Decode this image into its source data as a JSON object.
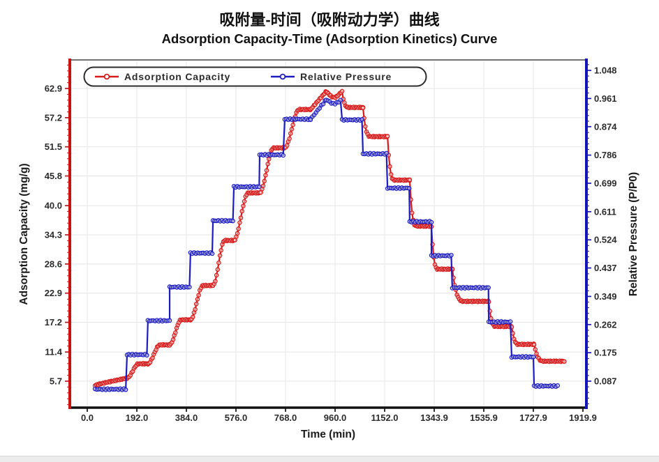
{
  "titles": {
    "zh": "吸附量-时间（吸附动力学）曲线",
    "en": "Adsorption Capacity-Time (Adsorption Kinetics) Curve"
  },
  "legend": {
    "items": [
      {
        "label": "Adsorption Capacity",
        "color": "#d81a1a",
        "marker": "circle-on-line"
      },
      {
        "label": "Relative Pressure",
        "color": "#1c1cc0",
        "marker": "circle-on-line"
      }
    ]
  },
  "axes": {
    "left": {
      "label": "Adsorption Capacity (mg/g)",
      "color": "#cc1111",
      "ticks": [
        "5.7",
        "11.4",
        "17.2",
        "22.9",
        "28.6",
        "34.3",
        "40.0",
        "45.8",
        "51.5",
        "57.2",
        "62.9"
      ]
    },
    "right": {
      "label": "Relative Pressure (P/P0)",
      "color": "#1414b8",
      "ticks": [
        "0.087",
        "0.175",
        "0.262",
        "0.349",
        "0.437",
        "0.524",
        "0.611",
        "0.699",
        "0.786",
        "0.874",
        "0.961",
        "1.048"
      ]
    },
    "bottom": {
      "label": "Time (min)",
      "color": "#111111",
      "ticks": [
        "0.0",
        "192.0",
        "384.0",
        "576.0",
        "768.0",
        "960.0",
        "1152.0",
        "1343.9",
        "1535.9",
        "1727.9",
        "1919.9"
      ]
    }
  },
  "chart_data": {
    "type": "line",
    "title": "Adsorption Capacity-Time (Adsorption Kinetics) Curve",
    "xlabel": "Time (min)",
    "ylabel_left": "Adsorption Capacity (mg/g)",
    "ylabel_right": "Relative Pressure (P/P0)",
    "x_range_min": [
      0,
      1919.9
    ],
    "left_range": [
      5.7,
      62.9
    ],
    "right_range": [
      0.087,
      1.048
    ],
    "grid": true,
    "legend_position": "top-inside",
    "series_info": [
      {
        "name": "Adsorption Capacity",
        "axis": "left",
        "color": "#d81a1a",
        "unit": "mg/g"
      },
      {
        "name": "Relative Pressure",
        "axis": "right",
        "color": "#1c1cc0",
        "unit": "P/P0"
      }
    ],
    "steps": [
      {
        "t0": 30,
        "t1": 154,
        "pressure": 0.062,
        "capacity": 6.3,
        "capacity_start": 4.9,
        "type": "initial"
      },
      {
        "t0": 154,
        "t1": 235,
        "pressure": 0.169,
        "capacity": 9.1,
        "type": "hold"
      },
      {
        "t0": 235,
        "t1": 319,
        "pressure": 0.274,
        "capacity": 12.8,
        "type": "hold"
      },
      {
        "t0": 319,
        "t1": 400,
        "pressure": 0.378,
        "capacity": 17.7,
        "type": "hold"
      },
      {
        "t0": 400,
        "t1": 487,
        "pressure": 0.483,
        "capacity": 24.4,
        "type": "hold"
      },
      {
        "t0": 487,
        "t1": 568,
        "pressure": 0.583,
        "capacity": 33.2,
        "type": "hold"
      },
      {
        "t0": 568,
        "t1": 668,
        "pressure": 0.688,
        "capacity": 42.5,
        "type": "hold"
      },
      {
        "t0": 668,
        "t1": 765,
        "pressure": 0.787,
        "capacity": 51.3,
        "type": "hold"
      },
      {
        "t0": 765,
        "t1": 865,
        "pressure": 0.897,
        "capacity": 58.8,
        "type": "hold"
      },
      {
        "t0": 865,
        "t1": 925,
        "pressure": 0.957,
        "capacity": 62.3,
        "type": "ramp"
      },
      {
        "t0": 925,
        "t1": 987,
        "pressure": 0.957,
        "capacity": 62.3,
        "type": "peak"
      },
      {
        "t0": 987,
        "t1": 1068,
        "pressure": 0.895,
        "capacity": 59.2,
        "type": "hold"
      },
      {
        "t0": 1068,
        "t1": 1163,
        "pressure": 0.79,
        "capacity": 53.5,
        "type": "hold"
      },
      {
        "t0": 1163,
        "t1": 1249,
        "pressure": 0.684,
        "capacity": 45.0,
        "type": "hold"
      },
      {
        "t0": 1249,
        "t1": 1333,
        "pressure": 0.58,
        "capacity": 36.0,
        "type": "hold"
      },
      {
        "t0": 1333,
        "t1": 1414,
        "pressure": 0.475,
        "capacity": 27.6,
        "type": "hold"
      },
      {
        "t0": 1414,
        "t1": 1555,
        "pressure": 0.376,
        "capacity": 21.3,
        "type": "hold"
      },
      {
        "t0": 1555,
        "t1": 1644,
        "pressure": 0.27,
        "capacity": 16.4,
        "type": "hold"
      },
      {
        "t0": 1644,
        "t1": 1731,
        "pressure": 0.162,
        "capacity": 12.9,
        "type": "hold"
      },
      {
        "t0": 1731,
        "t1": 1850,
        "pressure": 0.072,
        "capacity": 9.6,
        "type": "hold",
        "pressure_end_time": 1825
      }
    ]
  }
}
